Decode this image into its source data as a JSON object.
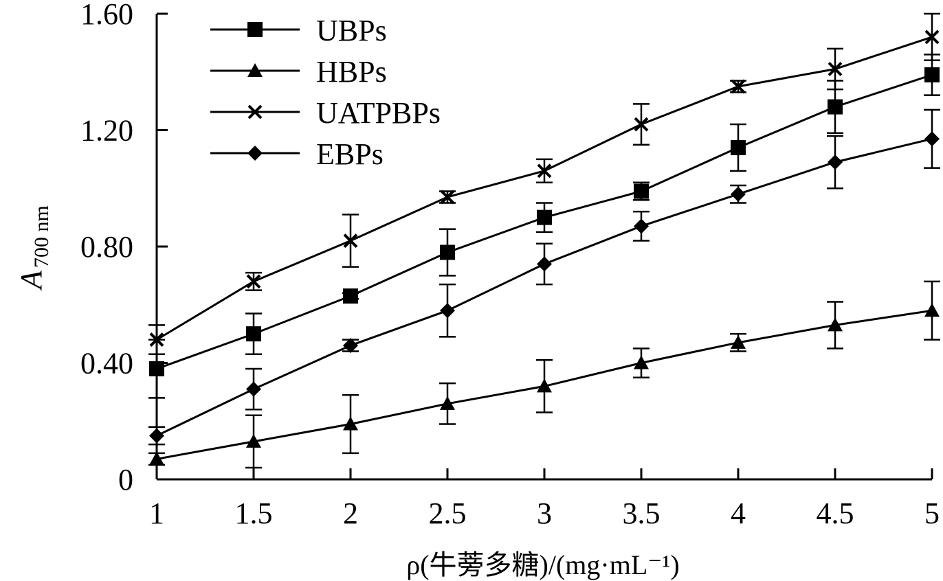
{
  "chart_data": {
    "type": "line",
    "title": "",
    "xlabel": "ρ(牛蒡多糖)/(mg·mL⁻¹)",
    "ylabel_main": "A",
    "ylabel_sub": "700 nm",
    "xlim": [
      1,
      5
    ],
    "ylim": [
      0,
      1.6
    ],
    "x": [
      1,
      1.5,
      2,
      2.5,
      3,
      3.5,
      4,
      4.5,
      5
    ],
    "x_tick_labels": [
      "1",
      "1.5",
      "2",
      "2.5",
      "3",
      "3.5",
      "4",
      "4.5",
      "5"
    ],
    "y_ticks": [
      0,
      0.4,
      0.8,
      1.2,
      1.6
    ],
    "y_tick_labels": [
      "0",
      "0.40",
      "0.80",
      "1.20",
      "1.60"
    ],
    "grid": false,
    "legend_position": "top-left",
    "series": [
      {
        "name": "UBPs",
        "marker": "square",
        "values": [
          0.38,
          0.5,
          0.63,
          0.78,
          0.9,
          0.99,
          1.14,
          1.28,
          1.39
        ],
        "errors": [
          0.1,
          0.07,
          0.01,
          0.08,
          0.05,
          0.03,
          0.08,
          0.09,
          0.07
        ]
      },
      {
        "name": "HBPs",
        "marker": "triangle",
        "values": [
          0.07,
          0.13,
          0.19,
          0.26,
          0.32,
          0.4,
          0.47,
          0.53,
          0.58
        ],
        "errors": [
          0.02,
          0.09,
          0.1,
          0.07,
          0.09,
          0.05,
          0.03,
          0.08,
          0.1
        ]
      },
      {
        "name": "UATPBPs",
        "marker": "x",
        "values": [
          0.48,
          0.68,
          0.82,
          0.97,
          1.06,
          1.22,
          1.35,
          1.41,
          1.52
        ],
        "errors": [
          0.05,
          0.03,
          0.09,
          0.02,
          0.04,
          0.07,
          0.02,
          0.07,
          0.08
        ]
      },
      {
        "name": "EBPs",
        "marker": "diamond",
        "values": [
          0.15,
          0.31,
          0.46,
          0.58,
          0.74,
          0.87,
          0.98,
          1.09,
          1.17
        ],
        "errors": [
          0.03,
          0.07,
          0.02,
          0.09,
          0.07,
          0.05,
          0.03,
          0.09,
          0.1
        ]
      }
    ]
  }
}
